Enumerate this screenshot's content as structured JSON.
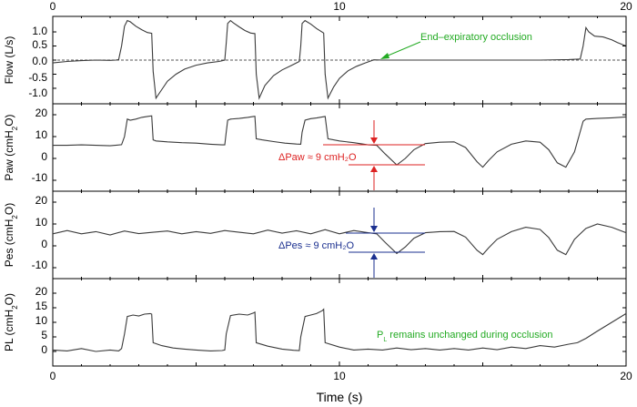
{
  "chart_data": {
    "type": "line",
    "xlabel": "Time (s)",
    "xlim": [
      0,
      20
    ],
    "x_ticks": [
      0,
      10,
      20
    ],
    "x_tick_labels": [
      "0",
      "10",
      "20"
    ],
    "panels": [
      {
        "id": "flow",
        "ylabel": "Flow (L/s)",
        "ylim": [
          -1.55,
          1.55
        ],
        "y_ticks": [
          -1.0,
          -0.5,
          0.0,
          0.5,
          1.0
        ],
        "y_tick_labels": [
          "-1.0",
          "-0.5",
          "0.0",
          "0.5",
          "1.0"
        ],
        "zero_line": true,
        "series": {
          "x": [
            0,
            0.5,
            1,
            1.5,
            2,
            2.2,
            2.3,
            2.4,
            2.5,
            2.6,
            2.7,
            2.9,
            3.1,
            3.3,
            3.45,
            3.5,
            3.6,
            3.8,
            4.0,
            4.3,
            4.6,
            5.0,
            5.4,
            5.8,
            6.0,
            6.05,
            6.1,
            6.2,
            6.3,
            6.5,
            6.7,
            6.9,
            7.05,
            7.1,
            7.2,
            7.4,
            7.7,
            8.0,
            8.3,
            8.6,
            8.65,
            8.7,
            8.8,
            9.0,
            9.2,
            9.45,
            9.5,
            9.6,
            9.8,
            10.0,
            10.3,
            10.6,
            10.9,
            11.2,
            11.5,
            12,
            13,
            14,
            15,
            16,
            17,
            18,
            18.4,
            18.5,
            18.6,
            18.7,
            18.9,
            19.2,
            19.5,
            19.7,
            20
          ],
          "y": [
            -0.1,
            -0.05,
            -0.02,
            0.0,
            -0.01,
            0.0,
            0.02,
            0.5,
            1.2,
            1.4,
            1.36,
            1.2,
            1.08,
            0.98,
            0.95,
            -0.4,
            -1.35,
            -1.05,
            -0.75,
            -0.5,
            -0.32,
            -0.18,
            -0.1,
            -0.05,
            0.0,
            0.6,
            1.3,
            1.4,
            1.32,
            1.18,
            1.05,
            0.96,
            0.94,
            -0.5,
            -1.35,
            -0.9,
            -0.55,
            -0.35,
            -0.2,
            -0.05,
            0.5,
            1.3,
            1.4,
            1.28,
            1.12,
            0.96,
            -0.5,
            -1.35,
            -0.95,
            -0.65,
            -0.38,
            -0.22,
            -0.1,
            0.01,
            0.0,
            0.0,
            0.0,
            0.0,
            0.0,
            0.0,
            0.0,
            0.02,
            0.04,
            0.5,
            1.15,
            1.0,
            0.85,
            0.82,
            0.72,
            0.62,
            0.5
          ]
        }
      },
      {
        "id": "paw",
        "ylabel": "Paw (cmH2O)",
        "ylabel_main": "Paw (cmH",
        "ylabel_sub": "2",
        "ylabel_tail": "O)",
        "ylim": [
          -15,
          25
        ],
        "y_ticks": [
          -10,
          0,
          10,
          20
        ],
        "y_tick_labels": [
          "-10",
          "0",
          "10",
          "20"
        ],
        "series": {
          "x": [
            0,
            0.5,
            1,
            1.5,
            2,
            2.4,
            2.5,
            2.6,
            2.7,
            2.9,
            3.1,
            3.3,
            3.45,
            3.5,
            3.6,
            4.0,
            4.5,
            5.0,
            5.5,
            5.9,
            6.0,
            6.05,
            6.1,
            6.2,
            6.5,
            6.8,
            7.0,
            7.05,
            7.1,
            7.3,
            7.7,
            8.1,
            8.5,
            8.65,
            8.7,
            8.8,
            9.0,
            9.2,
            9.4,
            9.5,
            9.6,
            10,
            10.5,
            11,
            11.3,
            11.6,
            12.0,
            12.3,
            12.6,
            13.0,
            13.5,
            14.0,
            14.4,
            14.8,
            15.0,
            15.2,
            15.5,
            16.0,
            16.5,
            17.0,
            17.3,
            17.6,
            17.9,
            18.2,
            18.5,
            18.6,
            19.0,
            19.5,
            20
          ],
          "y": [
            6,
            6,
            6.2,
            6,
            5.8,
            6.3,
            10,
            18,
            17.5,
            18,
            18.8,
            19.2,
            19.5,
            8.5,
            8,
            7.6,
            7.2,
            7.0,
            6.5,
            6.2,
            6.2,
            12,
            17.5,
            18,
            18.3,
            18.8,
            19.2,
            19.3,
            9,
            8.5,
            7.7,
            7.0,
            6.6,
            6.5,
            12,
            17.5,
            18.2,
            18.5,
            19,
            19.2,
            9,
            8,
            7.2,
            6.2,
            6.0,
            2,
            -3,
            0,
            4,
            6.8,
            7.4,
            7.6,
            5,
            -1.5,
            -4,
            -1,
            3,
            6.5,
            8,
            7.4,
            4,
            -2,
            -4,
            3,
            17,
            18,
            18.3,
            18.6,
            19
          ]
        }
      },
      {
        "id": "pes",
        "ylabel": "Pes (cmH2O)",
        "ylabel_main": "Pes (cmH",
        "ylabel_sub": "2",
        "ylabel_tail": "O)",
        "ylim": [
          -15,
          25
        ],
        "y_ticks": [
          -10,
          0,
          10,
          20
        ],
        "y_tick_labels": [
          "-10",
          "0",
          "10",
          "20"
        ],
        "series": {
          "x": [
            0,
            0.5,
            1,
            1.5,
            2,
            2.5,
            3,
            3.5,
            4,
            4.5,
            5,
            5.5,
            6,
            6.5,
            7,
            7.5,
            8,
            8.5,
            9,
            9.5,
            10,
            10.5,
            11,
            11.3,
            11.6,
            12.0,
            12.3,
            12.6,
            13.0,
            13.5,
            14.0,
            14.4,
            14.8,
            15.0,
            15.2,
            15.5,
            16.0,
            16.5,
            17.0,
            17.3,
            17.6,
            17.9,
            18.2,
            18.6,
            19.0,
            19.5,
            20
          ],
          "y": [
            5.5,
            7,
            5.5,
            6.5,
            5,
            6.8,
            5.6,
            6.2,
            6.8,
            5.5,
            6.5,
            5.7,
            7,
            6.2,
            5.5,
            7.2,
            5.8,
            6.9,
            5.5,
            7.4,
            5.5,
            7,
            6,
            5.5,
            1.5,
            -3.5,
            -0.5,
            3.5,
            6,
            6.5,
            6.6,
            4,
            -2,
            -4,
            -1,
            3,
            6.5,
            8.5,
            7.5,
            3.8,
            -2,
            -4,
            3,
            8,
            10,
            8.5,
            6
          ]
        }
      },
      {
        "id": "pl",
        "ylabel": "PL (cmH2O)",
        "ylabel_main": "PL (cmH",
        "ylabel_sub": "2",
        "ylabel_tail": "O)",
        "ylim": [
          -5,
          25
        ],
        "y_ticks": [
          0,
          5,
          10,
          15,
          20
        ],
        "y_tick_labels": [
          "0",
          "5",
          "10",
          "15",
          "20"
        ],
        "series": {
          "x": [
            0,
            0.5,
            1,
            1.5,
            2,
            2.3,
            2.4,
            2.5,
            2.6,
            2.8,
            3.0,
            3.2,
            3.4,
            3.45,
            3.5,
            3.8,
            4.2,
            4.6,
            5.0,
            5.5,
            5.9,
            6.0,
            6.05,
            6.2,
            6.5,
            6.8,
            7.0,
            7.05,
            7.1,
            7.5,
            8.0,
            8.4,
            8.6,
            8.65,
            8.8,
            9.0,
            9.2,
            9.4,
            9.45,
            9.5,
            10,
            10.5,
            11,
            11.5,
            12,
            12.5,
            13,
            13.5,
            14,
            14.5,
            15,
            15.5,
            16,
            16.5,
            17,
            17.5,
            18,
            18.3,
            18.6,
            19.0,
            19.5,
            20
          ],
          "y": [
            0.5,
            0.2,
            1,
            0,
            0.5,
            0.2,
            1,
            6,
            12,
            12.5,
            12.2,
            12.8,
            13,
            12.8,
            3,
            2,
            1.2,
            0.8,
            0.5,
            0.2,
            0.3,
            0.5,
            6,
            12.3,
            12.8,
            12.5,
            13.2,
            13.5,
            3,
            1.8,
            0.8,
            0.4,
            0.3,
            5,
            12,
            12.5,
            13,
            14,
            14.5,
            3,
            1.5,
            0.5,
            0.8,
            0.5,
            1.2,
            0.6,
            1,
            0.5,
            1,
            0.5,
            1.2,
            0.6,
            1.5,
            1,
            2,
            1.5,
            2.5,
            3,
            4.5,
            7,
            10,
            13
          ]
        }
      }
    ],
    "annotations": [
      {
        "panel": "flow",
        "text": "End–expiratory  occlusion",
        "color": "#22aa22"
      },
      {
        "panel": "paw",
        "text": "ΔPaw ≈ 9 cmH₂O",
        "color": "#dd2222"
      },
      {
        "panel": "pes",
        "text": "ΔPes ≈ 9 cmH₂O",
        "color": "#1a2f8f"
      },
      {
        "panel": "pl",
        "text_main": "P",
        "text_sub": "L",
        "text_tail": " remains unchanged during occlusion",
        "color": "#22aa22"
      }
    ],
    "colors": {
      "trace": "#3a3a3a",
      "zero_line": "#555555",
      "paw_marker": "#dd2222",
      "pes_marker": "#1a2f8f",
      "annotation_green": "#22aa22"
    }
  }
}
